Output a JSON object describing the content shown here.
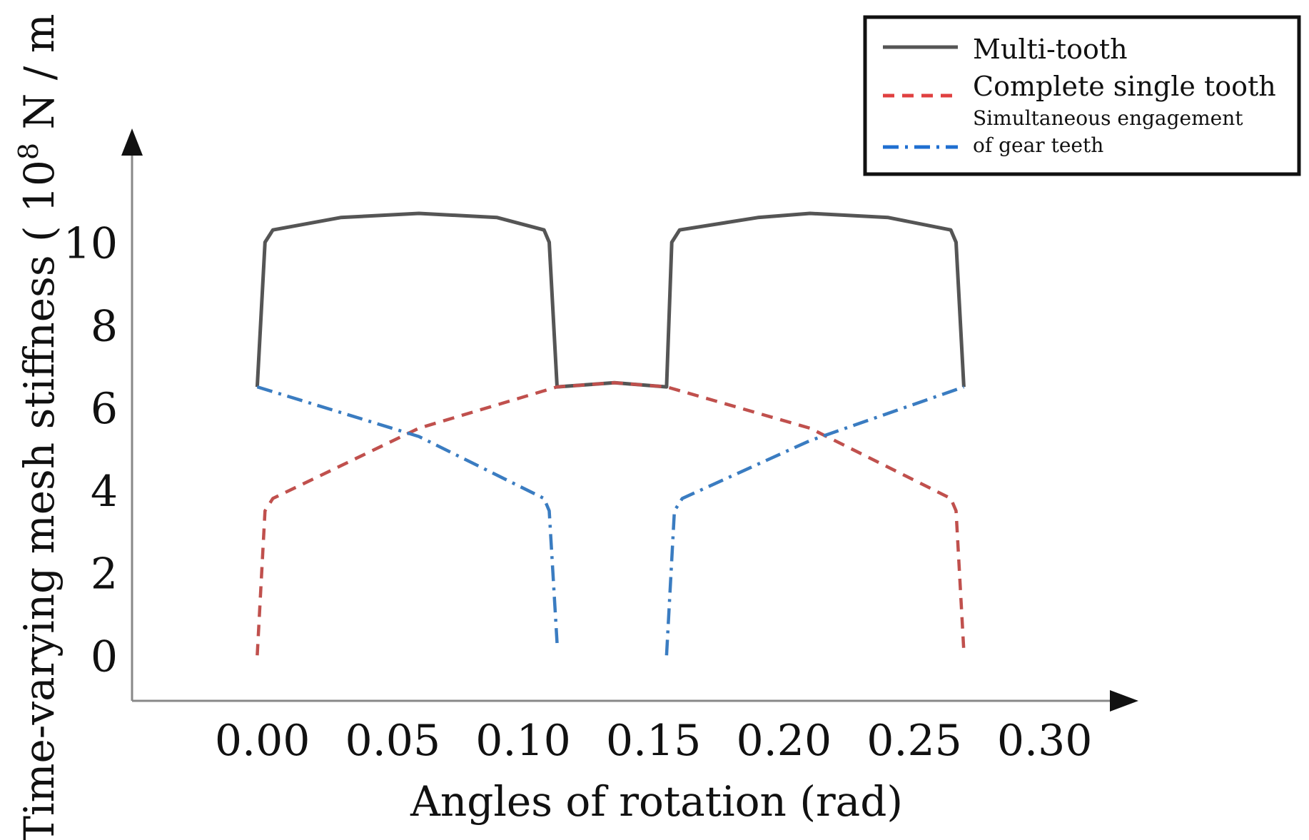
{
  "chart_data": {
    "type": "line",
    "title": "",
    "xlabel": "Angles of rotation (rad)",
    "ylabel": "Time-varying mesh stiffness ( 10",
    "ylabel_exponent": "8",
    "ylabel_unit": " N / m )",
    "xlim": [
      -0.05,
      0.325
    ],
    "ylim": [
      -1.1,
      12.1
    ],
    "xticks": [
      "0.00",
      "0.05",
      "0.10",
      "0.15",
      "0.20",
      "0.25",
      "0.30"
    ],
    "xtick_values": [
      0.0,
      0.05,
      0.1,
      0.15,
      0.2,
      0.25,
      0.3
    ],
    "yticks": [
      "0",
      "2",
      "4",
      "6",
      "8",
      "10"
    ],
    "ytick_values": [
      0,
      2,
      4,
      6,
      8,
      10
    ],
    "grid": false,
    "legend_position": "top-right",
    "series": [
      {
        "name": "Multi-tooth",
        "style": "solid",
        "color": "#555555",
        "points": [
          [
            -0.002,
            6.5
          ],
          [
            0.001,
            10.0
          ],
          [
            0.004,
            10.3
          ],
          [
            0.03,
            10.6
          ],
          [
            0.06,
            10.7
          ],
          [
            0.09,
            10.6
          ],
          [
            0.108,
            10.3
          ],
          [
            0.11,
            10.0
          ],
          [
            0.113,
            6.5
          ],
          [
            0.135,
            6.6
          ],
          [
            0.155,
            6.5
          ],
          [
            0.157,
            10.0
          ],
          [
            0.16,
            10.3
          ],
          [
            0.19,
            10.6
          ],
          [
            0.21,
            10.7
          ],
          [
            0.24,
            10.6
          ],
          [
            0.264,
            10.3
          ],
          [
            0.266,
            10.0
          ],
          [
            0.269,
            6.5
          ]
        ]
      },
      {
        "name": "Complete single tooth",
        "style": "dashed",
        "color": "#c0504d",
        "points": [
          [
            -0.002,
            0.0
          ],
          [
            0.001,
            3.5
          ],
          [
            0.004,
            3.8
          ],
          [
            0.06,
            5.5
          ],
          [
            0.113,
            6.5
          ],
          [
            0.135,
            6.6
          ],
          [
            0.155,
            6.5
          ],
          [
            0.21,
            5.5
          ],
          [
            0.264,
            3.8
          ],
          [
            0.266,
            3.5
          ],
          [
            0.269,
            0.1
          ]
        ]
      },
      {
        "name": "Simultaneous engagement of gear teeth",
        "name_line1": "Simultaneous engagement",
        "name_line2": "of gear teeth",
        "style": "dashdot",
        "color": "#3a7cc1",
        "points_segments": [
          [
            [
              -0.002,
              6.5
            ],
            [
              0.06,
              5.3
            ],
            [
              0.108,
              3.8
            ],
            [
              0.11,
              3.5
            ],
            [
              0.113,
              0.3
            ]
          ],
          [
            [
              0.155,
              0.0
            ],
            [
              0.158,
              3.5
            ],
            [
              0.161,
              3.8
            ],
            [
              0.21,
              5.2
            ],
            [
              0.269,
              6.5
            ]
          ]
        ]
      }
    ]
  }
}
